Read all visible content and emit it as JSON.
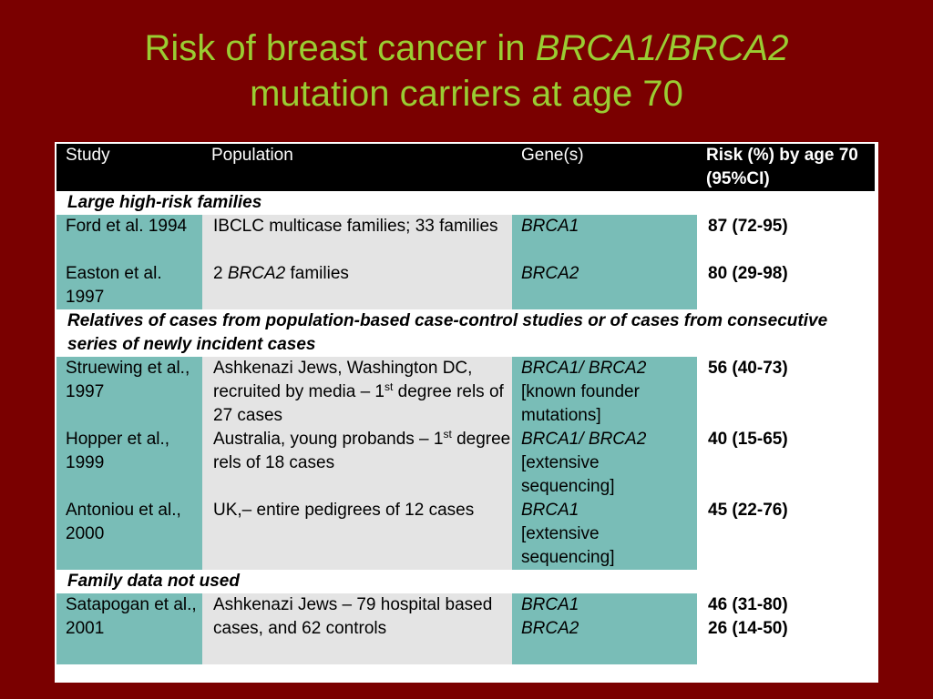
{
  "title": {
    "line1_prefix": "Risk of breast cancer in ",
    "line1_italic": "BRCA1/BRCA2",
    "line2": "mutation carriers at age 70"
  },
  "table": {
    "headers": {
      "study": "Study",
      "population": "Population",
      "genes": "Gene(s)",
      "risk": "Risk (%) by age 70 (95%CI)"
    },
    "sections": [
      {
        "label": "Large high-risk families",
        "rows": [
          {
            "study": "Ford et al. 1994",
            "population": "IBCLC multicase families; 33 families",
            "genes": [
              "BRCA1"
            ],
            "gene_note": "",
            "risks": [
              "87 (72-95)"
            ]
          },
          {
            "study": "Easton et al. 1997",
            "population_num": "2 ",
            "population_italic": "BRCA2",
            "population_rest": " families",
            "genes": [
              "BRCA2"
            ],
            "gene_note": "",
            "risks": [
              "80 (29-98)"
            ]
          }
        ]
      },
      {
        "label": "Relatives of cases from population-based case-control studies or of cases from  consecutive series of newly incident cases",
        "rows": [
          {
            "study": "Struewing et al., 1997",
            "population_pre": "Ashkenazi Jews, Washington DC, recruited by media – 1",
            "population_sup": "st",
            "population_post": " degree rels of 27 cases",
            "genes": [
              "BRCA1/ BRCA2"
            ],
            "gene_note": "[known founder mutations]",
            "risks": [
              "56 (40-73)"
            ]
          },
          {
            "study": "Hopper et al., 1999",
            "population_pre": "Australia, young probands – 1",
            "population_sup": "st",
            "population_post": " degree rels of 18 cases",
            "genes": [
              "BRCA1/ BRCA2"
            ],
            "gene_note": "[extensive sequencing]",
            "risks": [
              "40 (15-65)"
            ]
          },
          {
            "study": "Antoniou et al., 2000",
            "population": "UK,– entire pedigrees of 12 cases",
            "genes": [
              "BRCA1"
            ],
            "gene_note": "[extensive sequencing]",
            "risks": [
              "45 (22-76)"
            ]
          }
        ]
      },
      {
        "label": "Family data not used",
        "rows": [
          {
            "study": "Satapogan et al., 2001",
            "population": "Ashkenazi Jews – 79 hospital based cases, and 62 controls",
            "genes": [
              "BRCA1",
              "BRCA2"
            ],
            "gene_note": "",
            "risks": [
              "46 (31-80)",
              "26 (14-50)"
            ]
          }
        ]
      }
    ]
  }
}
